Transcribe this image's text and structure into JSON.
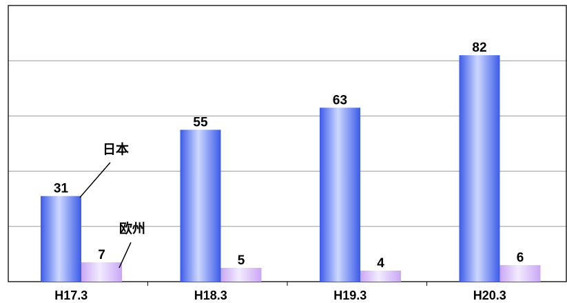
{
  "chart_data": {
    "type": "bar",
    "categories": [
      "H17.3",
      "H18.3",
      "H19.3",
      "H20.3"
    ],
    "series": [
      {
        "name": "日本",
        "values": [
          31,
          55,
          63,
          82
        ]
      },
      {
        "name": "欧州",
        "values": [
          7,
          5,
          4,
          6
        ]
      }
    ],
    "ylim": [
      0,
      100
    ],
    "grid": true,
    "legend": "callout labels next to first bar pair"
  },
  "colors": {
    "series_1": "#3b5be8",
    "series_1_highlight": "#cdd8ff",
    "series_2": "#c9a6f4",
    "series_2_highlight": "#f3ecff",
    "grid": "#9a9a9a",
    "axis": "#000000"
  }
}
